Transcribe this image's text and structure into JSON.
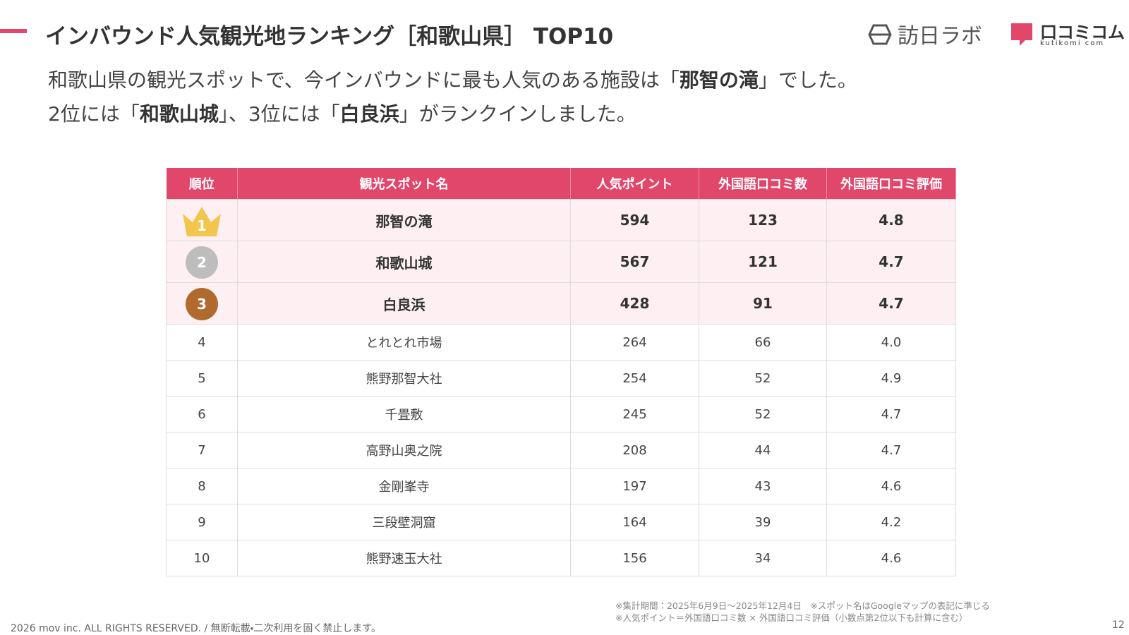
{
  "header": {
    "title": "インバウンド人気観光地ランキング［和歌山県］ TOP10",
    "logo_left": "訪日ラボ",
    "logo_right": "口コミコム",
    "logo_right_sub": "kutikomi com"
  },
  "intro": [
    [
      {
        "text": "和歌山県の観光スポットで、今インバウンドに最も人気のある施設は「",
        "bold": false
      },
      {
        "text": "那智の滝",
        "bold": true
      },
      {
        "text": "」でした。",
        "bold": false
      }
    ],
    [
      {
        "text": "2位には「",
        "bold": false
      },
      {
        "text": "和歌山城",
        "bold": true
      },
      {
        "text": "」、3位には「",
        "bold": false
      },
      {
        "text": "白良浜",
        "bold": true
      },
      {
        "text": "」がランクインしました。",
        "bold": false
      }
    ]
  ],
  "table": {
    "columns": [
      "順位",
      "観光スポット名",
      "人気ポイント",
      "外国語口コミ数",
      "外国語口コミ評価"
    ],
    "rows": [
      [
        "1",
        "那智の滝",
        "594",
        "123",
        "4.8"
      ],
      [
        "2",
        "和歌山城",
        "567",
        "121",
        "4.7"
      ],
      [
        "3",
        "白良浜",
        "428",
        "91",
        "4.7"
      ],
      [
        "4",
        "とれとれ市場",
        "264",
        "66",
        "4.0"
      ],
      [
        "5",
        "熊野那智大社",
        "254",
        "52",
        "4.9"
      ],
      [
        "6",
        "千畳敷",
        "245",
        "52",
        "4.7"
      ],
      [
        "7",
        "高野山奥之院",
        "208",
        "44",
        "4.7"
      ],
      [
        "8",
        "金剛峯寺",
        "197",
        "43",
        "4.6"
      ],
      [
        "9",
        "三段壁洞窟",
        "164",
        "39",
        "4.2"
      ],
      [
        "10",
        "熊野速玉大社",
        "156",
        "34",
        "4.6"
      ]
    ]
  },
  "notes": [
    "※集計期間：2025年6月9日〜2025年12月4日　※スポット名はGoogleマップの表記に準じる",
    "※人気ポイント＝外国語口コミ数 × 外国語口コミ評価（小数点第2位以下も計算に含む）"
  ],
  "footer": {
    "copyright": "2026 mov inc. ALL RIGHTS RESERVED. / 無断転載・二次利用を固く禁止します。",
    "page": "12"
  }
}
